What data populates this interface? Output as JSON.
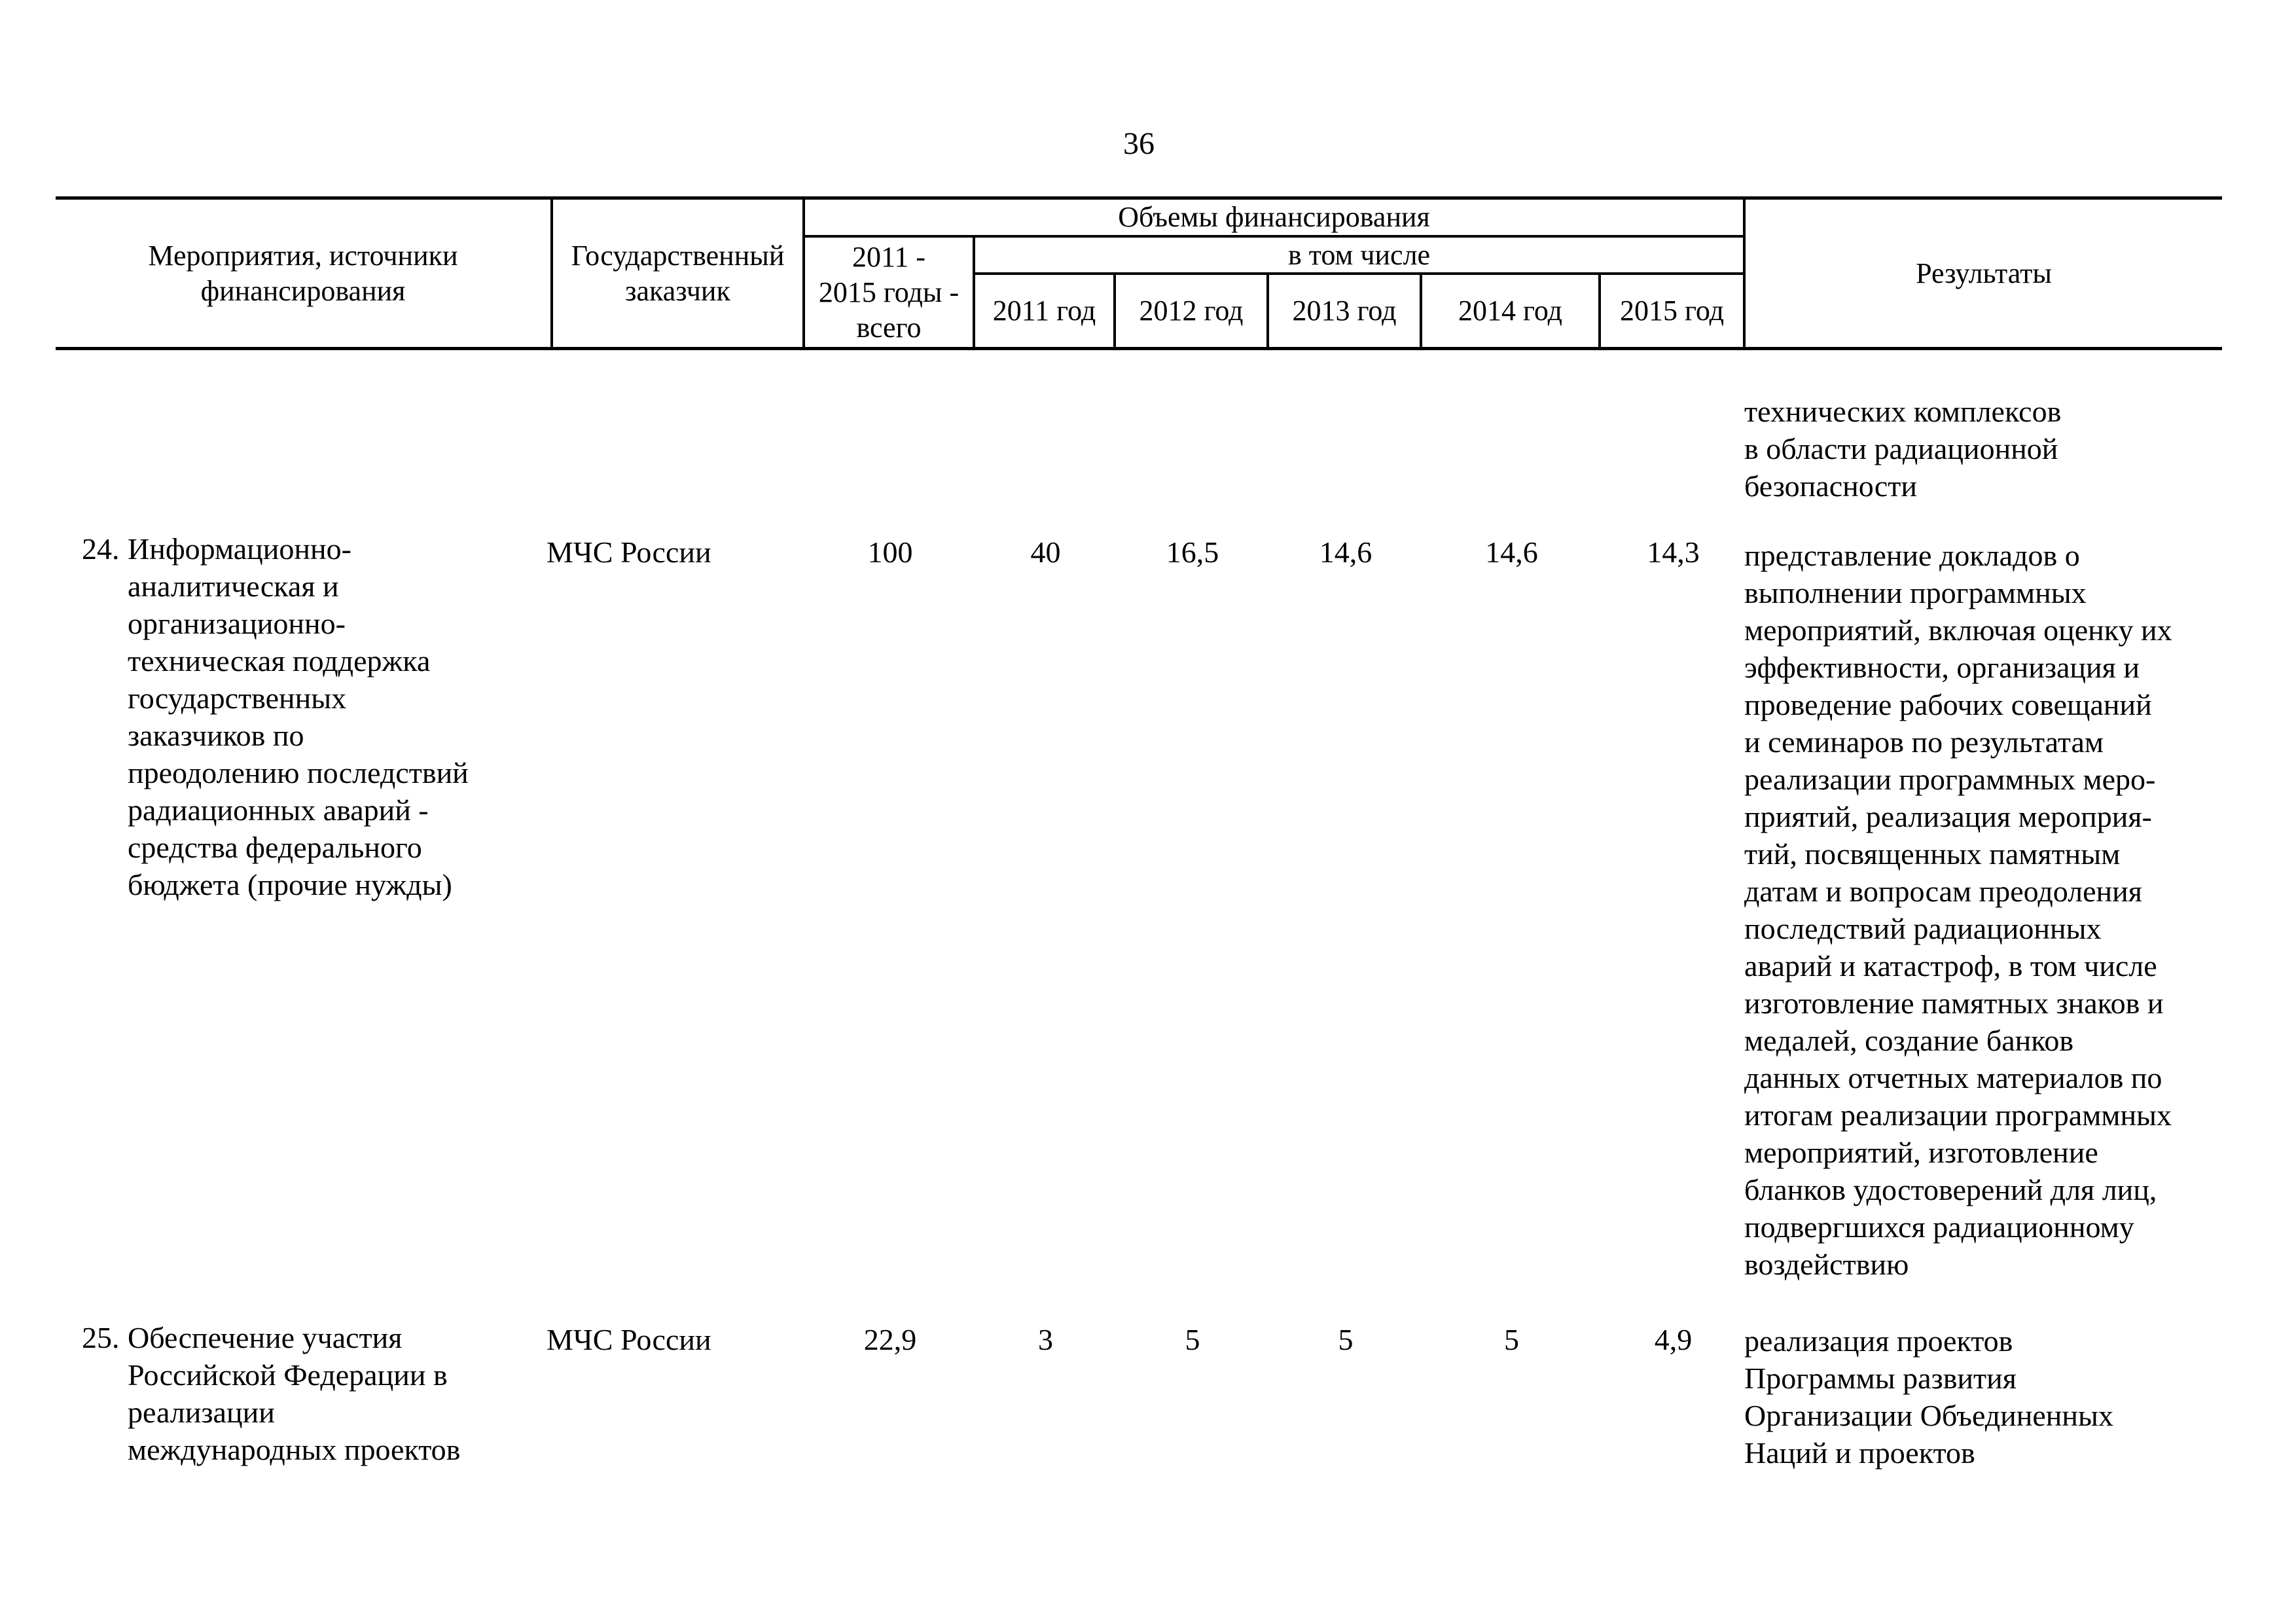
{
  "page": {
    "number": "36"
  },
  "colors": {
    "text": "#000000",
    "background": "#ffffff"
  },
  "table": {
    "header": {
      "col_activities": "Мероприятия, источники\nфинансирования",
      "col_customer": "Государственный\nзаказчик",
      "col_funding": "Объемы финансирования",
      "col_total": "2011 -\n2015 годы -\nвсего",
      "col_including": "в том числе",
      "years": [
        "2011 год",
        "2012 год",
        "2013 год",
        "2014 год",
        "2015 год"
      ],
      "col_results": "Результаты"
    },
    "continuation": {
      "results": "технических комплексов\nв области радиационной\nбезопасности"
    },
    "rows": [
      {
        "num": "24.",
        "activity": "Информационно-\nаналитическая и\nорганизационно-\nтехническая поддержка\nгосударственных\nзаказчиков по\nпреодолению последствий\nрадиационных аварий -\nсредства федерального\nбюджета (прочие нужды)",
        "customer": "МЧС России",
        "amounts": {
          "total": "100",
          "by_year": [
            "40",
            "16,5",
            "14,6",
            "14,6",
            "14,3"
          ]
        },
        "results": "представление докладов о\nвыполнении программных\nмероприятий, включая оценку их\nэффективности, организация и\nпроведение рабочих совещаний\nи семинаров по результатам\nреализации программных меро-\nприятий, реализация мероприя-\nтий, посвященных памятным\nдатам и вопросам преодоления\nпоследствий радиационных\nаварий и катастроф, в том числе\nизготовление памятных знаков и\nмедалей, создание банков\nданных отчетных материалов по\nитогам реализации программных\nмероприятий, изготовление\nбланков удостоверений для лиц,\nподвергшихся радиационному\nвоздействию"
      },
      {
        "num": "25.",
        "activity": "Обеспечение участия\nРоссийской Федерации в\nреализации\nмеждународных проектов",
        "customer": "МЧС России",
        "amounts": {
          "total": "22,9",
          "by_year": [
            "3",
            "5",
            "5",
            "5",
            "4,9"
          ]
        },
        "results": "реализация проектов\nПрограммы развития\nОрганизации Объединенных\nНаций и проектов"
      }
    ]
  }
}
